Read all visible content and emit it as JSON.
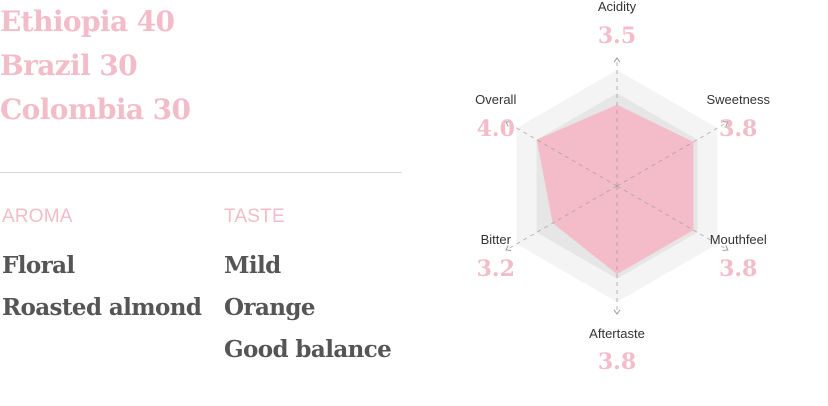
{
  "blend": [
    {
      "origin": "Ethiopia",
      "share": "40"
    },
    {
      "origin": "Brazil",
      "share": "30"
    },
    {
      "origin": "Colombia",
      "share": "30"
    }
  ],
  "aroma": {
    "title": "AROMA",
    "items": [
      "Floral",
      "Roasted almond"
    ]
  },
  "taste": {
    "title": "TASTE",
    "items": [
      "Mild",
      "Orange",
      "Good balance"
    ]
  },
  "colors": {
    "accent": "#f2bcc8",
    "text": "#555555",
    "fill": "#f4bcc8",
    "ring_outer": "#f3f4f3",
    "ring_inner": "#e6e6e6"
  },
  "chart_data": {
    "type": "radar",
    "axes": [
      "Acidity",
      "Sweetness",
      "Mouthfeel",
      "Aftertaste",
      "Bitter",
      "Overall"
    ],
    "values": [
      3.5,
      3.8,
      3.8,
      3.8,
      3.2,
      4.0
    ],
    "value_labels": [
      "3.5",
      "3.8",
      "3.8",
      "3.8",
      "3.2",
      "4.0"
    ],
    "range": [
      0,
      5
    ],
    "grid_levels": 2
  }
}
